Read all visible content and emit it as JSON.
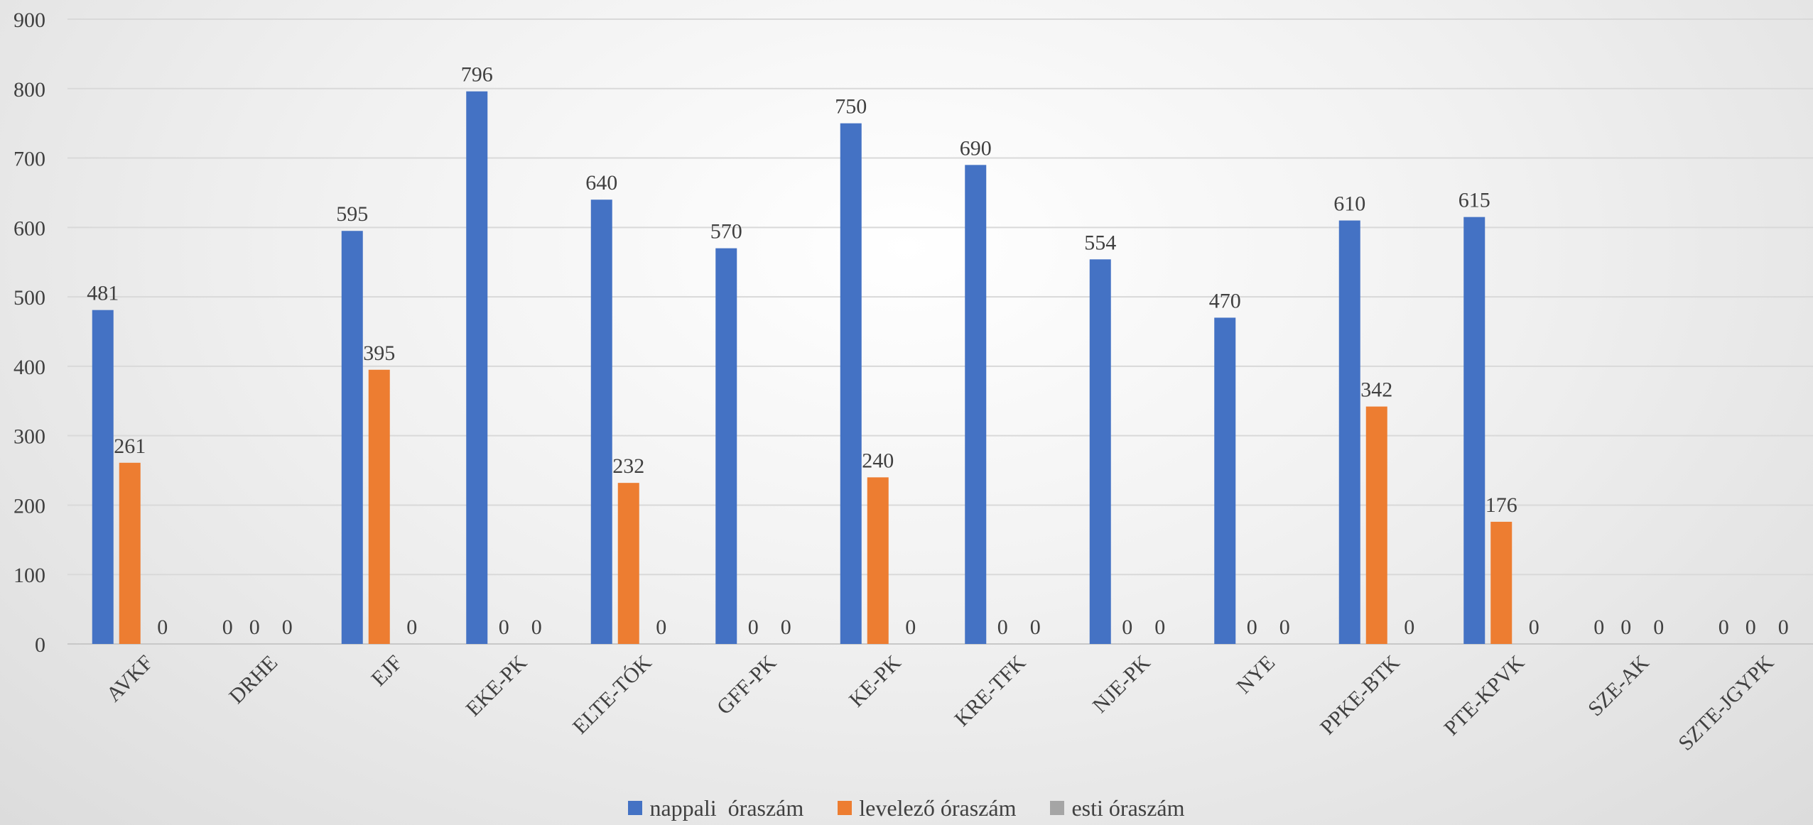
{
  "chart_data": {
    "type": "bar",
    "categories": [
      "AVKF",
      "DRHE",
      "EJF",
      "EKE-PK",
      "ELTE-TÓK",
      "GFF-PK",
      "KE-PK",
      "KRE-TFK",
      "NJE-PK",
      "NYE",
      "PPKE-BTK",
      "PTE-KPVK",
      "SZE-AK",
      "SZTE-JGYPK"
    ],
    "series": [
      {
        "name": "nappali  óraszám",
        "color": "#4472C4",
        "values": [
          481,
          0,
          595,
          796,
          640,
          570,
          750,
          690,
          554,
          470,
          610,
          615,
          0,
          0
        ]
      },
      {
        "name": "levelező óraszám",
        "color": "#ED7D31",
        "values": [
          261,
          0,
          395,
          0,
          232,
          0,
          240,
          0,
          0,
          0,
          342,
          176,
          0,
          0
        ]
      },
      {
        "name": "esti óraszám",
        "color": "#A5A5A5",
        "values": [
          0,
          0,
          0,
          0,
          0,
          0,
          0,
          0,
          0,
          0,
          0,
          0,
          0,
          0
        ]
      }
    ],
    "y_ticks": [
      "0",
      "100",
      "200",
      "300",
      "400",
      "500",
      "600",
      "700",
      "800",
      "900"
    ],
    "ylim": [
      0,
      900
    ],
    "grid": true,
    "legend_position": "bottom",
    "data_labels": true
  }
}
